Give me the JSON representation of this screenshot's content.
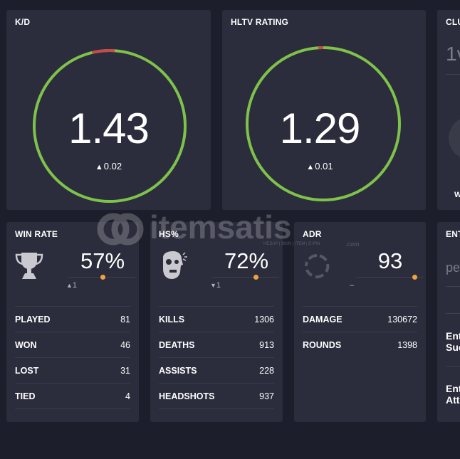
{
  "cards": {
    "kd": {
      "title": "K/D",
      "value": "1.43",
      "delta": "0.02",
      "ring_fraction": 0.95
    },
    "hltv": {
      "title": "HLTV RATING",
      "value": "1.29",
      "delta": "0.01",
      "ring_fraction": 0.98
    },
    "clutch": {
      "title": "CLU",
      "value": "1v",
      "footer": "W"
    }
  },
  "winrate": {
    "title": "WIN RATE",
    "pct": "57%",
    "delta": "1",
    "rows": [
      {
        "label": "PLAYED",
        "value": "81"
      },
      {
        "label": "WON",
        "value": "46"
      },
      {
        "label": "LOST",
        "value": "31"
      },
      {
        "label": "TIED",
        "value": "4"
      }
    ]
  },
  "hs": {
    "title": "HS%",
    "pct": "72%",
    "delta": "1",
    "rows": [
      {
        "label": "KILLS",
        "value": "1306"
      },
      {
        "label": "DEATHS",
        "value": "913"
      },
      {
        "label": "ASSISTS",
        "value": "228"
      },
      {
        "label": "HEADSHOTS",
        "value": "937"
      }
    ]
  },
  "adr": {
    "title": "ADR",
    "pct": "93",
    "delta": "–",
    "rows": [
      {
        "label": "DAMAGE",
        "value": "130672"
      },
      {
        "label": "ROUNDS",
        "value": "1398"
      }
    ]
  },
  "entry": {
    "title": "ENT",
    "placeholder": "pe",
    "row1": "Ent",
    "row1b": "Suc",
    "row2": "Ent",
    "row2b": "Att"
  },
  "watermark": {
    "brand": "itemsatis",
    "tagline": "HESAP | SKIN | ITEM | E-PIN",
    "tld": ".com"
  },
  "colors": {
    "ring_good": "#7ec24a",
    "ring_bad": "#c84b4b",
    "accent_dot": "#f0a33c",
    "card_bg": "#2b2c3c",
    "page_bg": "#1d1e2c"
  },
  "icons": {
    "winrate": "trophy-icon",
    "hs": "head-target-icon",
    "adr": "spinner-ring-icon",
    "delta_up": "caret-up-icon",
    "delta_down": "caret-down-icon"
  }
}
